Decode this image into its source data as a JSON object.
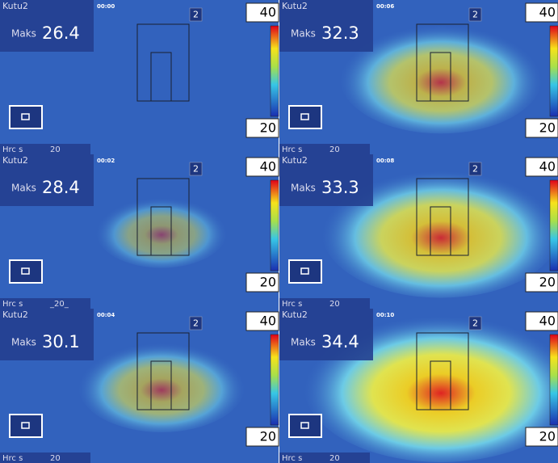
{
  "panels": [
    {
      "title": "Kutu2",
      "label": "Maks",
      "max": 26.4,
      "time": "00:00",
      "zone": "2",
      "scale_top": "40",
      "scale_bottom": "20",
      "footer_label": "Hrc s",
      "footer_value": "20"
    },
    {
      "title": "Kutu2",
      "label": "Maks",
      "max": 32.3,
      "time": "00:06",
      "zone": "2",
      "scale_top": "40",
      "scale_bottom": "20",
      "footer_label": "Hrc s",
      "footer_value": "20"
    },
    {
      "title": "Kutu2",
      "label": "Maks",
      "max": 28.4,
      "time": "00:02",
      "zone": "2",
      "scale_top": "40",
      "scale_bottom": "20",
      "footer_label": "Hrc s",
      "footer_value": "_20_"
    },
    {
      "title": "Kutu2",
      "label": "Maks",
      "max": 33.3,
      "time": "00:08",
      "zone": "2",
      "scale_top": "40",
      "scale_bottom": "20",
      "footer_label": "Hrc s",
      "footer_value": "20"
    },
    {
      "title": "Kutu2",
      "label": "Maks",
      "max": 30.1,
      "time": "00:04",
      "zone": "2",
      "scale_top": "40",
      "scale_bottom": "20",
      "footer_label": "Hrc s",
      "footer_value": "20"
    },
    {
      "title": "Kutu2",
      "label": "Maks",
      "max": 34.4,
      "time": "00:10",
      "zone": "2",
      "scale_top": "40",
      "scale_bottom": "20",
      "footer_label": "Hrc s",
      "footer_value": "20"
    }
  ]
}
